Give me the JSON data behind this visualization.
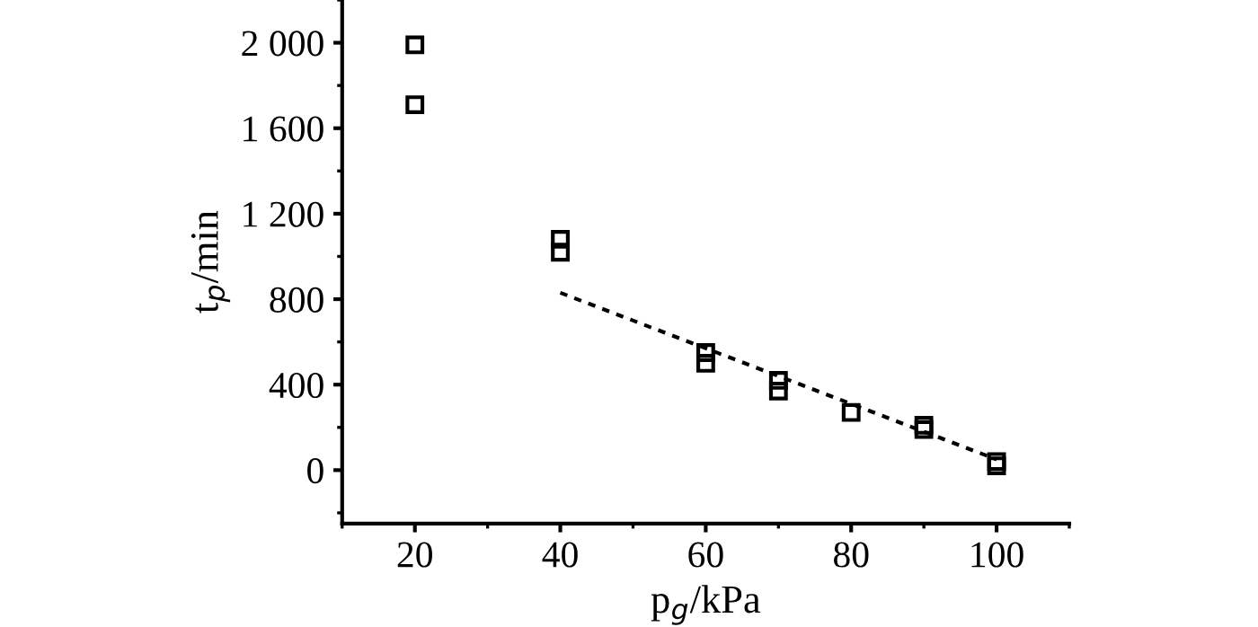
{
  "chart_data": {
    "type": "scatter",
    "xlabel": "p$_{g}$/kPa",
    "ylabel": "t$_{p}$/min",
    "xlim": [
      10,
      110
    ],
    "ylim": [
      -250,
      2200
    ],
    "xticks": [
      20,
      40,
      60,
      80,
      100
    ],
    "yticks": [
      0,
      400,
      800,
      {
        "value": 1200,
        "label": "1 200"
      },
      {
        "value": 1600,
        "label": "1 600"
      },
      {
        "value": 2000,
        "label": "2 000"
      }
    ],
    "grid": false,
    "legend": false,
    "series": [
      {
        "color": "#000000",
        "marker": "square",
        "x": [
          20,
          20,
          40,
          40,
          60,
          60,
          70,
          70,
          80,
          90,
          90,
          100,
          100
        ],
        "values": [
          1990,
          1710,
          1080,
          1020,
          550,
          500,
          420,
          370,
          270,
          210,
          190,
          40,
          20
        ]
      },
      {
        "type": "line",
        "color": "#000000",
        "marker": "none",
        "line_style": "dotted",
        "x": [
          40,
          100
        ],
        "values": [
          830,
          50
        ]
      }
    ]
  }
}
